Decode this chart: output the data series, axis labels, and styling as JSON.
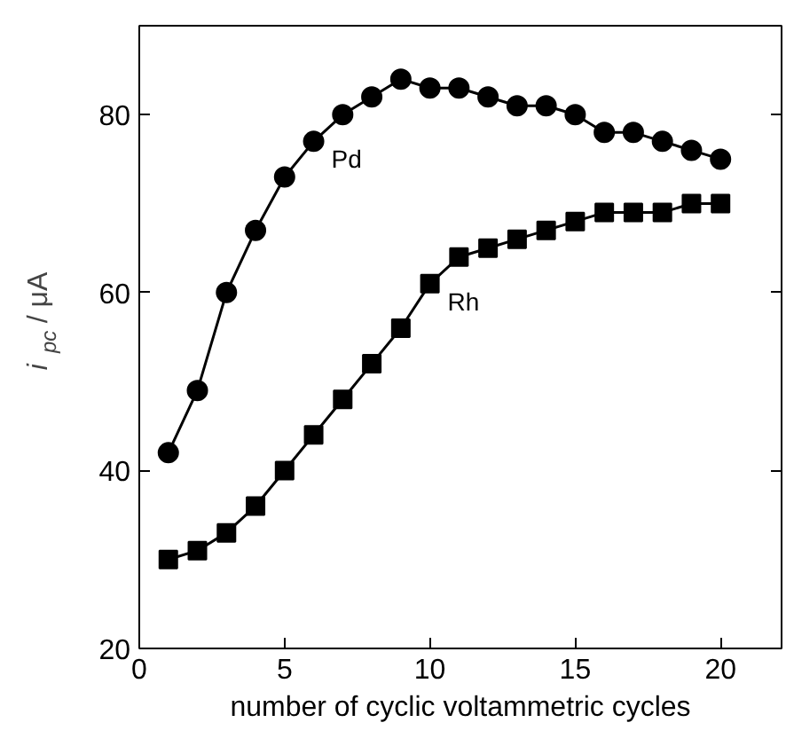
{
  "chart_data": {
    "type": "line",
    "xlabel": "number of cyclic voltammetric cycles",
    "ylabel": "i$_{pc}$ / μA",
    "x": [
      1,
      2,
      3,
      4,
      5,
      6,
      7,
      8,
      9,
      10,
      11,
      12,
      13,
      14,
      15,
      16,
      17,
      18,
      19,
      20
    ],
    "series": [
      {
        "name": "Pd",
        "color": "#000000",
        "marker": "circle",
        "values": [
          42,
          49,
          60,
          67,
          73,
          77,
          80,
          82,
          84,
          83,
          83,
          82,
          81,
          81,
          80,
          78,
          78,
          77,
          76,
          75
        ]
      },
      {
        "name": "Rh",
        "color": "#000000",
        "marker": "square",
        "values": [
          30,
          31,
          33,
          36,
          40,
          44,
          48,
          52,
          56,
          61,
          64,
          65,
          66,
          67,
          68,
          69,
          69,
          69,
          70,
          70
        ]
      }
    ],
    "xlim": [
      0,
      22.1
    ],
    "ylim": [
      20,
      90
    ],
    "xticks": [
      0,
      5,
      10,
      15,
      20
    ],
    "yticks": [
      20,
      40,
      60,
      80
    ],
    "grid": false,
    "legend": false,
    "line_style": "solid"
  }
}
